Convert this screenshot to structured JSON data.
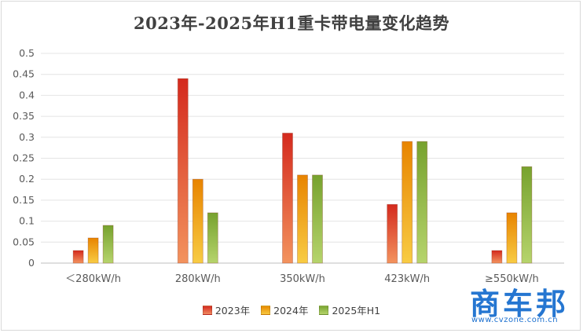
{
  "chart_data": {
    "type": "bar",
    "title": "2023年-2025年H1重卡带电量变化趋势",
    "categories": [
      "＜280kW/h",
      "280kW/h",
      "350kW/h",
      "423kW/h",
      "≥550kW/h"
    ],
    "series": [
      {
        "name": "2023年",
        "values": [
          0.03,
          0.44,
          0.31,
          0.14,
          0.03
        ],
        "color": "#e0392c"
      },
      {
        "name": "2024年",
        "values": [
          0.06,
          0.2,
          0.21,
          0.29,
          0.12
        ],
        "color": "#f0a018"
      },
      {
        "name": "2025年H1",
        "values": [
          0.09,
          0.12,
          0.21,
          0.29,
          0.23
        ],
        "color": "#8db43e"
      }
    ],
    "ylim": [
      0,
      0.5
    ],
    "yticks": [
      "0",
      "0.05",
      "0.1",
      "0.15",
      "0.2",
      "0.25",
      "0.3",
      "0.35",
      "0.4",
      "0.45",
      "0.5"
    ],
    "xlabel": "",
    "ylabel": "",
    "grid": true,
    "legend": "bottom"
  },
  "watermark": {
    "brand": "商车邦",
    "url": "www.cvzone.com.cn"
  }
}
